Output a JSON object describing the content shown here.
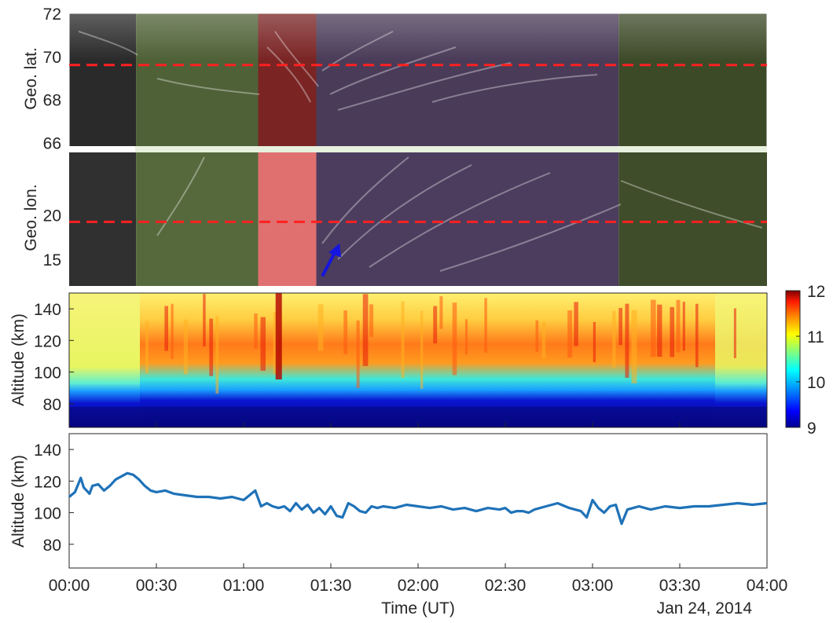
{
  "time_axis": {
    "tick_labels": [
      "00:00",
      "00:30",
      "01:00",
      "01:30",
      "02:00",
      "02:30",
      "03:00",
      "03:30",
      "04:00"
    ],
    "range_minutes": [
      0,
      240
    ],
    "label": "Time (UT)",
    "date": "Jan 24, 2014"
  },
  "chart_data": [
    {
      "type": "heatmap",
      "panel": "keogram",
      "ylabel": "Geo. lat.",
      "ylim": [
        65.8,
        72
      ],
      "yticks": [
        "66",
        "68",
        "70",
        "72"
      ],
      "reference_line": {
        "value": 69.6,
        "style": "red dashed"
      },
      "color_segments": [
        {
          "start_minute": 0,
          "end_minute": 23,
          "tint": "none",
          "color": "#2a2a2a"
        },
        {
          "start_minute": 23,
          "end_minute": 65,
          "tint": "green",
          "color": "#4f6137"
        },
        {
          "start_minute": 65,
          "end_minute": 85,
          "tint": "red",
          "color": "#7a2424"
        },
        {
          "start_minute": 85,
          "end_minute": 189,
          "tint": "purple",
          "color": "#4a3b58"
        },
        {
          "start_minute": 189,
          "end_minute": 240,
          "tint": "green",
          "color": "#3d4a28"
        }
      ]
    },
    {
      "type": "heatmap",
      "panel": "ewogram",
      "ylabel": "Geo. lon.",
      "yticks": [
        "15",
        "20"
      ],
      "ylim": [
        12,
        27
      ],
      "reference_line": {
        "value": 19.2,
        "style": "red dashed"
      },
      "annotation": {
        "type": "arrow",
        "color": "#1515e0",
        "points_to_minute": 93,
        "points_to_value": 16.8
      }
    },
    {
      "type": "heatmap",
      "panel": "altitude-profile",
      "ylabel": "Altitude (km)",
      "ylim": [
        65,
        150
      ],
      "yticks": [
        "80",
        "100",
        "120",
        "140"
      ],
      "colorbar": {
        "range": [
          9,
          12
        ],
        "ticks": [
          "9",
          "10",
          "11",
          "12"
        ]
      }
    },
    {
      "type": "line",
      "panel": "altitude-line",
      "ylabel": "Altitude (km)",
      "ylim": [
        65,
        150
      ],
      "yticks": [
        "80",
        "100",
        "120",
        "140"
      ],
      "xlabel": "Time (UT)",
      "series": [
        {
          "color": "#1f72b8",
          "x_minutes": [
            0,
            2,
            4,
            5,
            7,
            8,
            10,
            12,
            14,
            16,
            18,
            20,
            22,
            24,
            26,
            28,
            30,
            33,
            36,
            40,
            44,
            48,
            52,
            56,
            60,
            62,
            64,
            66,
            68,
            70,
            72,
            74,
            76,
            78,
            80,
            82,
            84,
            86,
            88,
            90,
            92,
            94,
            96,
            98,
            100,
            102,
            104,
            106,
            108,
            112,
            116,
            120,
            124,
            128,
            132,
            136,
            140,
            144,
            148,
            150,
            152,
            154,
            156,
            158,
            160,
            164,
            168,
            172,
            176,
            178,
            180,
            182,
            184,
            186,
            188,
            190,
            192,
            194,
            196,
            198,
            200,
            205,
            210,
            215,
            220,
            225,
            230,
            235,
            240
          ],
          "y": [
            110,
            113,
            122,
            116,
            112,
            117,
            118,
            114,
            117,
            121,
            123,
            125,
            124,
            121,
            117,
            114,
            113,
            114,
            112,
            111,
            110,
            110,
            109,
            110,
            108,
            111,
            114,
            104,
            106,
            104,
            103,
            104,
            101,
            106,
            102,
            105,
            100,
            103,
            99,
            104,
            98,
            97,
            106,
            104,
            101,
            100,
            104,
            103,
            104,
            103,
            105,
            104,
            103,
            104,
            102,
            103,
            101,
            103,
            102,
            103,
            100,
            101,
            101,
            100,
            102,
            104,
            106,
            103,
            101,
            97,
            108,
            103,
            100,
            104,
            105,
            93,
            102,
            103,
            104,
            103,
            102,
            104,
            103,
            104,
            104,
            105,
            106,
            105,
            106
          ]
        }
      ]
    }
  ]
}
